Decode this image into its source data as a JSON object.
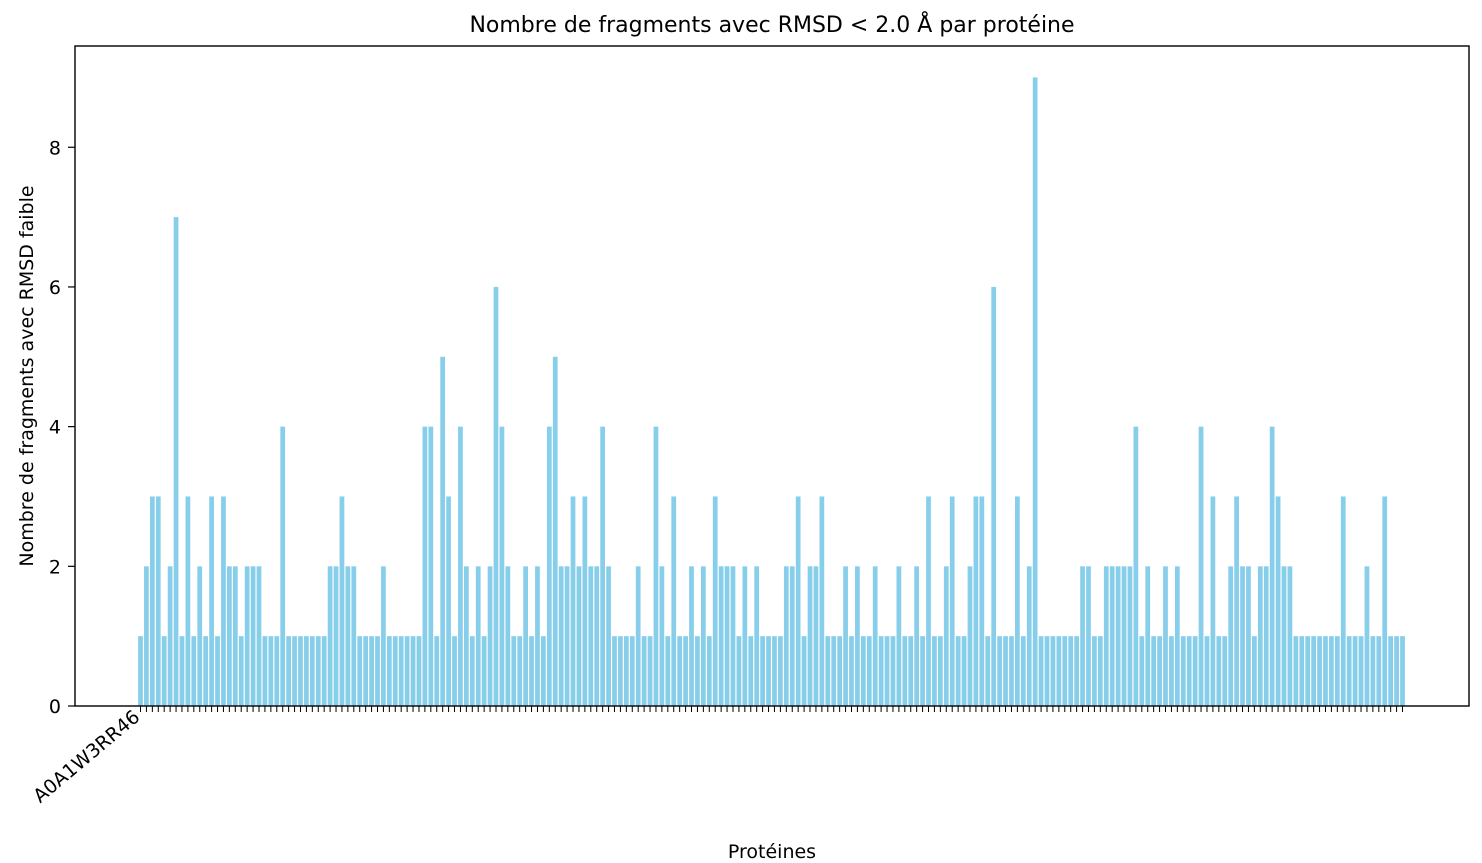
{
  "chart_data": {
    "type": "bar",
    "title": "Nombre de fragments avec RMSD < 2.0 Å par protéine",
    "xlabel": "Protéines",
    "ylabel": "Nombre de fragments avec RMSD faible",
    "ylim": [
      0,
      9.45
    ],
    "yticks": [
      0,
      2,
      4,
      6,
      8
    ],
    "grid": false,
    "bar_color": "#87ceeb",
    "first_category_label": "A0A1W3RR46",
    "values": [
      1,
      2,
      3,
      3,
      1,
      2,
      7,
      1,
      3,
      1,
      2,
      1,
      3,
      1,
      3,
      2,
      2,
      1,
      2,
      2,
      2,
      1,
      1,
      1,
      4,
      1,
      1,
      1,
      1,
      1,
      1,
      1,
      2,
      2,
      3,
      2,
      2,
      1,
      1,
      1,
      1,
      2,
      1,
      1,
      1,
      1,
      1,
      1,
      4,
      4,
      1,
      5,
      3,
      1,
      4,
      2,
      1,
      2,
      1,
      2,
      6,
      4,
      2,
      1,
      1,
      2,
      1,
      2,
      1,
      4,
      5,
      2,
      2,
      3,
      2,
      3,
      2,
      2,
      4,
      2,
      1,
      1,
      1,
      1,
      2,
      1,
      1,
      4,
      2,
      1,
      3,
      1,
      1,
      2,
      1,
      2,
      1,
      3,
      2,
      2,
      2,
      1,
      2,
      1,
      2,
      1,
      1,
      1,
      1,
      2,
      2,
      3,
      1,
      2,
      2,
      3,
      1,
      1,
      1,
      2,
      1,
      2,
      1,
      1,
      2,
      1,
      1,
      1,
      2,
      1,
      1,
      2,
      1,
      3,
      1,
      1,
      2,
      3,
      1,
      1,
      2,
      3,
      3,
      1,
      6,
      1,
      1,
      1,
      3,
      1,
      2,
      9,
      1,
      1,
      1,
      1,
      1,
      1,
      1,
      2,
      2,
      1,
      1,
      2,
      2,
      2,
      2,
      2,
      4,
      1,
      2,
      1,
      1,
      2,
      1,
      2,
      1,
      1,
      1,
      4,
      1,
      3,
      1,
      1,
      2,
      3,
      2,
      2,
      1,
      2,
      2,
      4,
      3,
      2,
      2,
      1,
      1,
      1,
      1,
      1,
      1,
      1,
      1,
      3,
      1,
      1,
      1,
      2,
      1,
      1,
      3,
      1,
      1,
      1
    ]
  }
}
